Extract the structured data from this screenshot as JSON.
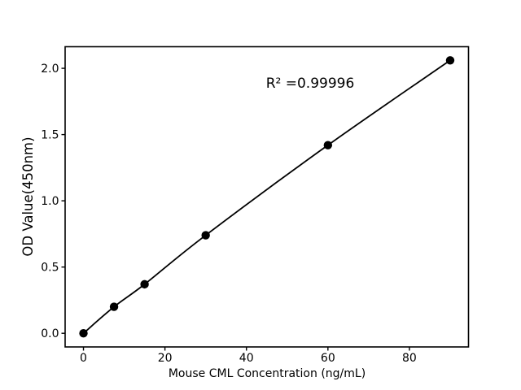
{
  "figure": {
    "background": "#ffffff"
  },
  "chart_data": {
    "type": "scatter",
    "title": "",
    "xlabel": "Mouse CML Concentration (ng/mL)",
    "ylabel": "OD Value(450nm)",
    "annotation": "R² =0.99996",
    "r_squared": 0.99996,
    "x": [
      0,
      7.5,
      15,
      30,
      60,
      90
    ],
    "y": [
      0.0,
      0.2,
      0.37,
      0.74,
      1.42,
      2.06
    ],
    "xticks": [
      0,
      20,
      40,
      60,
      80
    ],
    "yticks": [
      0.0,
      0.5,
      1.0,
      1.5,
      2.0
    ],
    "ytick_labels": [
      "0.0",
      "0.5",
      "1.0",
      "1.5",
      "2.0"
    ],
    "xlim": [
      -4.5,
      94.5
    ],
    "ylim": [
      -0.103,
      2.163
    ],
    "grid": false,
    "legend": false,
    "line_style": "smooth curve through data points",
    "line_color": "#000000",
    "marker": "circle",
    "marker_color": "#000000",
    "text_color": "#000000"
  }
}
